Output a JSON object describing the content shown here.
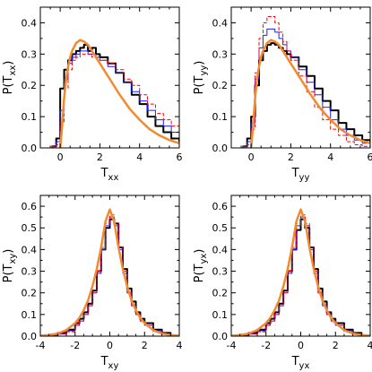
{
  "chart_data": [
    {
      "type": "line",
      "xlabel": "T",
      "xlabel_sub": "xx",
      "ylabel": "P(T",
      "ylabel_sub": "xx",
      "ylabel_close": ")",
      "xlim": [
        -1,
        6
      ],
      "ylim": [
        0,
        0.45
      ],
      "xticks": [
        0,
        2,
        4,
        6
      ],
      "yticks": [
        0.0,
        0.1,
        0.2,
        0.3,
        0.4
      ],
      "ytick_labels": [
        "0.0",
        "0.1",
        "0.2",
        "0.3",
        "0.4"
      ],
      "series": [
        {
          "style": "step",
          "color": "#000000",
          "dash": "",
          "width": 2,
          "x": [
            -0.4,
            -0.2,
            0.0,
            0.2,
            0.4,
            0.6,
            0.8,
            1.0,
            1.2,
            1.4,
            1.6,
            1.8,
            2.0,
            2.4,
            2.8,
            3.2,
            3.6,
            4.0,
            4.4,
            4.8,
            5.2,
            5.6,
            6.0
          ],
          "y": [
            0.005,
            0.03,
            0.19,
            0.25,
            0.28,
            0.3,
            0.31,
            0.32,
            0.33,
            0.31,
            0.32,
            0.3,
            0.29,
            0.27,
            0.24,
            0.21,
            0.17,
            0.14,
            0.1,
            0.07,
            0.05,
            0.03,
            0.02
          ]
        },
        {
          "style": "step",
          "color": "#1f1fff",
          "dash": "",
          "width": 1,
          "x": [
            -0.4,
            -0.2,
            0.0,
            0.2,
            0.4,
            0.6,
            0.8,
            1.0,
            1.2,
            1.4,
            1.6,
            1.8,
            2.0,
            2.4,
            2.8,
            3.2,
            3.6,
            4.0,
            4.4,
            4.8,
            5.2,
            5.6,
            6.0
          ],
          "y": [
            0.005,
            0.02,
            0.12,
            0.22,
            0.27,
            0.29,
            0.3,
            0.31,
            0.31,
            0.3,
            0.3,
            0.29,
            0.28,
            0.26,
            0.24,
            0.21,
            0.18,
            0.15,
            0.12,
            0.09,
            0.07,
            0.05,
            0.03
          ]
        },
        {
          "style": "step",
          "color": "#ff0000",
          "dash": "4,2",
          "width": 1,
          "x": [
            -0.4,
            -0.2,
            0.0,
            0.2,
            0.4,
            0.6,
            0.8,
            1.0,
            1.2,
            1.4,
            1.6,
            1.8,
            2.0,
            2.4,
            2.8,
            3.2,
            3.6,
            4.0,
            4.4,
            4.8,
            5.2,
            5.6,
            6.0
          ],
          "y": [
            0.005,
            0.01,
            0.08,
            0.19,
            0.25,
            0.28,
            0.29,
            0.3,
            0.3,
            0.3,
            0.29,
            0.29,
            0.28,
            0.27,
            0.25,
            0.22,
            0.2,
            0.17,
            0.14,
            0.11,
            0.09,
            0.07,
            0.05
          ]
        },
        {
          "style": "smooth",
          "color": "#f28a2e",
          "dash": "",
          "width": 2.5,
          "x": [
            0.0,
            0.1,
            0.2,
            0.3,
            0.4,
            0.5,
            0.6,
            0.8,
            1.0,
            1.2,
            1.4,
            1.6,
            1.8,
            2.0,
            2.5,
            3.0,
            3.5,
            4.0,
            4.5,
            5.0,
            5.5,
            6.0
          ],
          "y": [
            0.0,
            0.07,
            0.16,
            0.22,
            0.26,
            0.29,
            0.31,
            0.335,
            0.345,
            0.34,
            0.33,
            0.31,
            0.29,
            0.27,
            0.22,
            0.17,
            0.125,
            0.09,
            0.06,
            0.04,
            0.025,
            0.015
          ]
        }
      ]
    },
    {
      "type": "line",
      "xlabel": "T",
      "xlabel_sub": "yy",
      "ylabel": "P(T",
      "ylabel_sub": "yy",
      "ylabel_close": ")",
      "xlim": [
        -1,
        6
      ],
      "ylim": [
        0,
        0.45
      ],
      "xticks": [
        0,
        2,
        4,
        6
      ],
      "yticks": [
        0.0,
        0.1,
        0.2,
        0.3,
        0.4
      ],
      "ytick_labels": [
        "0.0",
        "0.1",
        "0.2",
        "0.3",
        "0.4"
      ],
      "series": [
        {
          "style": "step",
          "color": "#000000",
          "dash": "",
          "width": 2,
          "x": [
            -0.4,
            -0.2,
            0.0,
            0.2,
            0.4,
            0.6,
            0.8,
            1.0,
            1.2,
            1.4,
            1.6,
            1.8,
            2.0,
            2.4,
            2.8,
            3.2,
            3.6,
            4.0,
            4.4,
            4.8,
            5.2,
            5.6,
            6.0
          ],
          "y": [
            0.005,
            0.03,
            0.1,
            0.2,
            0.28,
            0.31,
            0.33,
            0.335,
            0.33,
            0.32,
            0.31,
            0.3,
            0.29,
            0.26,
            0.23,
            0.19,
            0.15,
            0.12,
            0.08,
            0.06,
            0.04,
            0.025,
            0.02
          ]
        },
        {
          "style": "step",
          "color": "#1f1fff",
          "dash": "",
          "width": 1,
          "x": [
            -0.4,
            -0.2,
            0.0,
            0.2,
            0.4,
            0.6,
            0.8,
            1.0,
            1.2,
            1.4,
            1.6,
            1.8,
            2.0,
            2.4,
            2.8,
            3.2,
            3.6,
            4.0,
            4.4,
            4.8,
            5.2,
            5.6,
            6.0
          ],
          "y": [
            0.005,
            0.02,
            0.08,
            0.22,
            0.32,
            0.36,
            0.38,
            0.38,
            0.37,
            0.35,
            0.33,
            0.31,
            0.29,
            0.25,
            0.21,
            0.17,
            0.13,
            0.09,
            0.06,
            0.04,
            0.025,
            0.015,
            0.01
          ]
        },
        {
          "style": "step",
          "color": "#ff0000",
          "dash": "4,2",
          "width": 1,
          "x": [
            -0.4,
            -0.2,
            0.0,
            0.2,
            0.4,
            0.6,
            0.8,
            1.0,
            1.2,
            1.4,
            1.6,
            1.8,
            2.0,
            2.4,
            2.8,
            3.2,
            3.6,
            4.0,
            4.4,
            4.8,
            5.2,
            5.6,
            6.0
          ],
          "y": [
            0.005,
            0.01,
            0.06,
            0.24,
            0.35,
            0.4,
            0.42,
            0.42,
            0.4,
            0.37,
            0.34,
            0.31,
            0.28,
            0.23,
            0.18,
            0.13,
            0.09,
            0.06,
            0.04,
            0.02,
            0.01,
            0.005,
            0.005
          ]
        },
        {
          "style": "smooth",
          "color": "#f28a2e",
          "dash": "",
          "width": 2.5,
          "x": [
            0.0,
            0.1,
            0.2,
            0.3,
            0.4,
            0.5,
            0.6,
            0.8,
            1.0,
            1.2,
            1.4,
            1.6,
            1.8,
            2.0,
            2.5,
            3.0,
            3.5,
            4.0,
            4.5,
            5.0,
            5.5,
            6.0
          ],
          "y": [
            0.0,
            0.07,
            0.16,
            0.22,
            0.26,
            0.29,
            0.31,
            0.335,
            0.345,
            0.34,
            0.33,
            0.31,
            0.29,
            0.27,
            0.22,
            0.17,
            0.125,
            0.09,
            0.06,
            0.04,
            0.025,
            0.015
          ]
        }
      ]
    },
    {
      "type": "line",
      "xlabel": "T",
      "xlabel_sub": "xy",
      "ylabel": "P(T",
      "ylabel_sub": "xy",
      "ylabel_close": ")",
      "xlim": [
        -4,
        4
      ],
      "ylim": [
        0,
        0.65
      ],
      "xticks": [
        -4,
        -2,
        0,
        2,
        4
      ],
      "yticks": [
        0.0,
        0.1,
        0.2,
        0.3,
        0.4,
        0.5,
        0.6
      ],
      "ytick_labels": [
        "0.0",
        "0.1",
        "0.2",
        "0.3",
        "0.4",
        "0.5",
        "0.6"
      ],
      "series": [
        {
          "style": "step",
          "color": "#000000",
          "dash": "",
          "width": 2,
          "x": [
            -3.5,
            -3.0,
            -2.5,
            -2.0,
            -1.75,
            -1.5,
            -1.25,
            -1.0,
            -0.75,
            -0.5,
            -0.25,
            0.0,
            0.25,
            0.5,
            0.75,
            1.0,
            1.25,
            1.5,
            1.75,
            2.0,
            2.5,
            3.0,
            3.5
          ],
          "y": [
            0.005,
            0.015,
            0.03,
            0.06,
            0.08,
            0.11,
            0.15,
            0.21,
            0.3,
            0.4,
            0.5,
            0.54,
            0.52,
            0.41,
            0.31,
            0.22,
            0.16,
            0.11,
            0.08,
            0.06,
            0.03,
            0.015,
            0.005
          ]
        },
        {
          "style": "step",
          "color": "#1f1fff",
          "dash": "",
          "width": 1,
          "x": [
            -3.5,
            -3.0,
            -2.5,
            -2.0,
            -1.75,
            -1.5,
            -1.25,
            -1.0,
            -0.75,
            -0.5,
            -0.25,
            0.0,
            0.25,
            0.5,
            0.75,
            1.0,
            1.25,
            1.5,
            1.75,
            2.0,
            2.5,
            3.0,
            3.5
          ],
          "y": [
            0.005,
            0.01,
            0.025,
            0.05,
            0.07,
            0.1,
            0.14,
            0.2,
            0.29,
            0.4,
            0.51,
            0.55,
            0.51,
            0.4,
            0.29,
            0.2,
            0.14,
            0.1,
            0.07,
            0.05,
            0.025,
            0.01,
            0.005
          ]
        },
        {
          "style": "step",
          "color": "#ff0000",
          "dash": "4,2",
          "width": 1,
          "x": [
            -3.5,
            -3.0,
            -2.5,
            -2.0,
            -1.75,
            -1.5,
            -1.25,
            -1.0,
            -0.75,
            -0.5,
            -0.25,
            0.0,
            0.25,
            0.5,
            0.75,
            1.0,
            1.25,
            1.5,
            1.75,
            2.0,
            2.5,
            3.0,
            3.5
          ],
          "y": [
            0.005,
            0.01,
            0.02,
            0.05,
            0.07,
            0.1,
            0.14,
            0.2,
            0.3,
            0.41,
            0.52,
            0.56,
            0.52,
            0.41,
            0.3,
            0.2,
            0.14,
            0.1,
            0.07,
            0.05,
            0.02,
            0.01,
            0.005
          ]
        },
        {
          "style": "smooth",
          "color": "#f28a2e",
          "dash": "",
          "width": 2.5,
          "x": [
            -4.0,
            -3.5,
            -3.0,
            -2.5,
            -2.0,
            -1.75,
            -1.5,
            -1.25,
            -1.0,
            -0.75,
            -0.5,
            -0.25,
            0.0,
            0.25,
            0.5,
            0.75,
            1.0,
            1.25,
            1.5,
            1.75,
            2.0,
            2.5,
            3.0,
            3.5,
            4.0
          ],
          "y": [
            0.002,
            0.005,
            0.012,
            0.028,
            0.06,
            0.085,
            0.12,
            0.165,
            0.23,
            0.31,
            0.41,
            0.53,
            0.585,
            0.53,
            0.41,
            0.31,
            0.23,
            0.165,
            0.12,
            0.085,
            0.06,
            0.028,
            0.012,
            0.005,
            0.002
          ]
        }
      ]
    },
    {
      "type": "line",
      "xlabel": "T",
      "xlabel_sub": "yx",
      "ylabel": "P(T",
      "ylabel_sub": "yx",
      "ylabel_close": ")",
      "xlim": [
        -4,
        4
      ],
      "ylim": [
        0,
        0.65
      ],
      "xticks": [
        -4,
        -2,
        0,
        2,
        4
      ],
      "yticks": [
        0.0,
        0.1,
        0.2,
        0.3,
        0.4,
        0.5,
        0.6
      ],
      "ytick_labels": [
        "0.0",
        "0.1",
        "0.2",
        "0.3",
        "0.4",
        "0.5",
        "0.6"
      ],
      "series": [
        {
          "style": "step",
          "color": "#000000",
          "dash": "",
          "width": 2,
          "x": [
            -3.5,
            -3.0,
            -2.5,
            -2.0,
            -1.75,
            -1.5,
            -1.25,
            -1.0,
            -0.75,
            -0.5,
            -0.25,
            0.0,
            0.25,
            0.5,
            0.75,
            1.0,
            1.25,
            1.5,
            1.75,
            2.0,
            2.5,
            3.0,
            3.5
          ],
          "y": [
            0.005,
            0.015,
            0.03,
            0.06,
            0.08,
            0.11,
            0.15,
            0.21,
            0.3,
            0.4,
            0.49,
            0.54,
            0.5,
            0.41,
            0.31,
            0.22,
            0.16,
            0.11,
            0.08,
            0.06,
            0.03,
            0.015,
            0.005
          ]
        },
        {
          "style": "step",
          "color": "#1f1fff",
          "dash": "",
          "width": 1,
          "x": [
            -3.5,
            -3.0,
            -2.5,
            -2.0,
            -1.75,
            -1.5,
            -1.25,
            -1.0,
            -0.75,
            -0.5,
            -0.25,
            0.0,
            0.25,
            0.5,
            0.75,
            1.0,
            1.25,
            1.5,
            1.75,
            2.0,
            2.5,
            3.0,
            3.5
          ],
          "y": [
            0.005,
            0.01,
            0.025,
            0.05,
            0.07,
            0.1,
            0.14,
            0.2,
            0.29,
            0.4,
            0.51,
            0.55,
            0.51,
            0.4,
            0.29,
            0.2,
            0.14,
            0.1,
            0.07,
            0.05,
            0.025,
            0.01,
            0.005
          ]
        },
        {
          "style": "step",
          "color": "#ff0000",
          "dash": "4,2",
          "width": 1,
          "x": [
            -3.5,
            -3.0,
            -2.5,
            -2.0,
            -1.75,
            -1.5,
            -1.25,
            -1.0,
            -0.75,
            -0.5,
            -0.25,
            0.0,
            0.25,
            0.5,
            0.75,
            1.0,
            1.25,
            1.5,
            1.75,
            2.0,
            2.5,
            3.0,
            3.5
          ],
          "y": [
            0.005,
            0.01,
            0.02,
            0.05,
            0.07,
            0.1,
            0.14,
            0.2,
            0.3,
            0.41,
            0.52,
            0.56,
            0.52,
            0.41,
            0.3,
            0.2,
            0.14,
            0.1,
            0.07,
            0.05,
            0.02,
            0.01,
            0.005
          ]
        },
        {
          "style": "smooth",
          "color": "#f28a2e",
          "dash": "",
          "width": 2.5,
          "x": [
            -4.0,
            -3.5,
            -3.0,
            -2.5,
            -2.0,
            -1.75,
            -1.5,
            -1.25,
            -1.0,
            -0.75,
            -0.5,
            -0.25,
            0.0,
            0.25,
            0.5,
            0.75,
            1.0,
            1.25,
            1.5,
            1.75,
            2.0,
            2.5,
            3.0,
            3.5,
            4.0
          ],
          "y": [
            0.002,
            0.005,
            0.012,
            0.028,
            0.06,
            0.085,
            0.12,
            0.165,
            0.23,
            0.31,
            0.41,
            0.53,
            0.585,
            0.53,
            0.41,
            0.31,
            0.23,
            0.165,
            0.12,
            0.085,
            0.06,
            0.028,
            0.012,
            0.005,
            0.002
          ]
        }
      ]
    }
  ]
}
